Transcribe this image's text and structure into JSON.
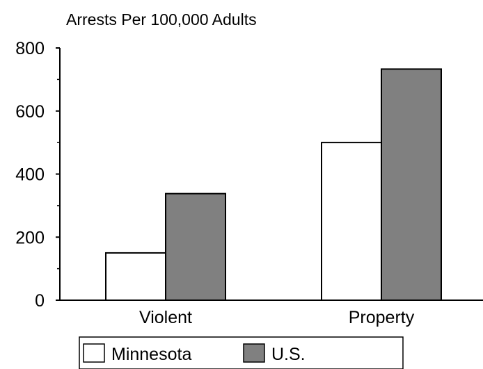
{
  "chart_data": {
    "type": "bar",
    "title": "Arrests Per 100,000 Adults",
    "categories": [
      "Violent",
      "Property"
    ],
    "series": [
      {
        "name": "Minnesota",
        "values": [
          150,
          500
        ],
        "color": "#ffffff"
      },
      {
        "name": "U.S.",
        "values": [
          338,
          733
        ],
        "color": "#808080"
      }
    ],
    "ylim": [
      0,
      800
    ],
    "yticks": [
      0,
      200,
      400,
      600,
      800
    ],
    "grid": false,
    "legend": "bottom"
  }
}
